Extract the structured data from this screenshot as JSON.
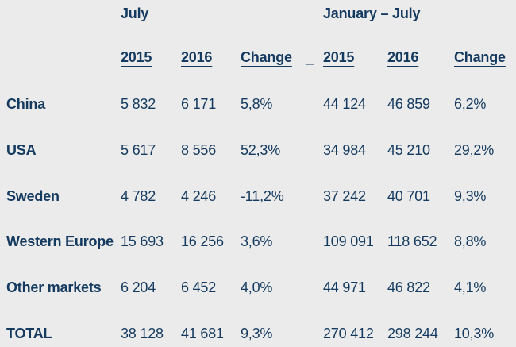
{
  "page": {
    "background_color": "#ebebeb",
    "text_color": "#143a5f"
  },
  "table": {
    "group_headers": [
      {
        "label": "July"
      },
      {
        "label": "January – July"
      }
    ],
    "column_headers": [
      "2015",
      "2016",
      "Change",
      "2015",
      "2016",
      "Change"
    ],
    "separator_mark": "_",
    "rows": [
      {
        "label": "China",
        "july_2015": "5 832",
        "july_2016": "6 171",
        "july_change": "5,8%",
        "jan_jul_2015": "44 124",
        "jan_jul_2016": "46 859",
        "jan_jul_change": "6,2%"
      },
      {
        "label": "USA",
        "july_2015": "5 617",
        "july_2016": "8 556",
        "july_change": "52,3%",
        "jan_jul_2015": "34 984",
        "jan_jul_2016": "45 210",
        "jan_jul_change": "29,2%"
      },
      {
        "label": "Sweden",
        "july_2015": "4 782",
        "july_2016": "4 246",
        "july_change": "-11,2%",
        "jan_jul_2015": "37 242",
        "jan_jul_2016": "40 701",
        "jan_jul_change": "9,3%"
      },
      {
        "label": "Western Europe",
        "july_2015": "15 693",
        "july_2016": "16 256",
        "july_change": "3,6%",
        "jan_jul_2015": "109 091",
        "jan_jul_2016": "118 652",
        "jan_jul_change": "8,8%"
      },
      {
        "label": "Other markets",
        "july_2015": "6 204",
        "july_2016": "6 452",
        "july_change": "4,0%",
        "jan_jul_2015": "44 971",
        "jan_jul_2016": "46 822",
        "jan_jul_change": "4,1%"
      },
      {
        "label": "TOTAL",
        "july_2015": "38 128",
        "july_2016": "41 681",
        "july_change": "9,3%",
        "jan_jul_2015": "270 412",
        "jan_jul_2016": "298 244",
        "jan_jul_change": "10,3%"
      }
    ]
  },
  "layout": {
    "first_data_row_top": 120,
    "data_row_spacing": 57.8
  }
}
